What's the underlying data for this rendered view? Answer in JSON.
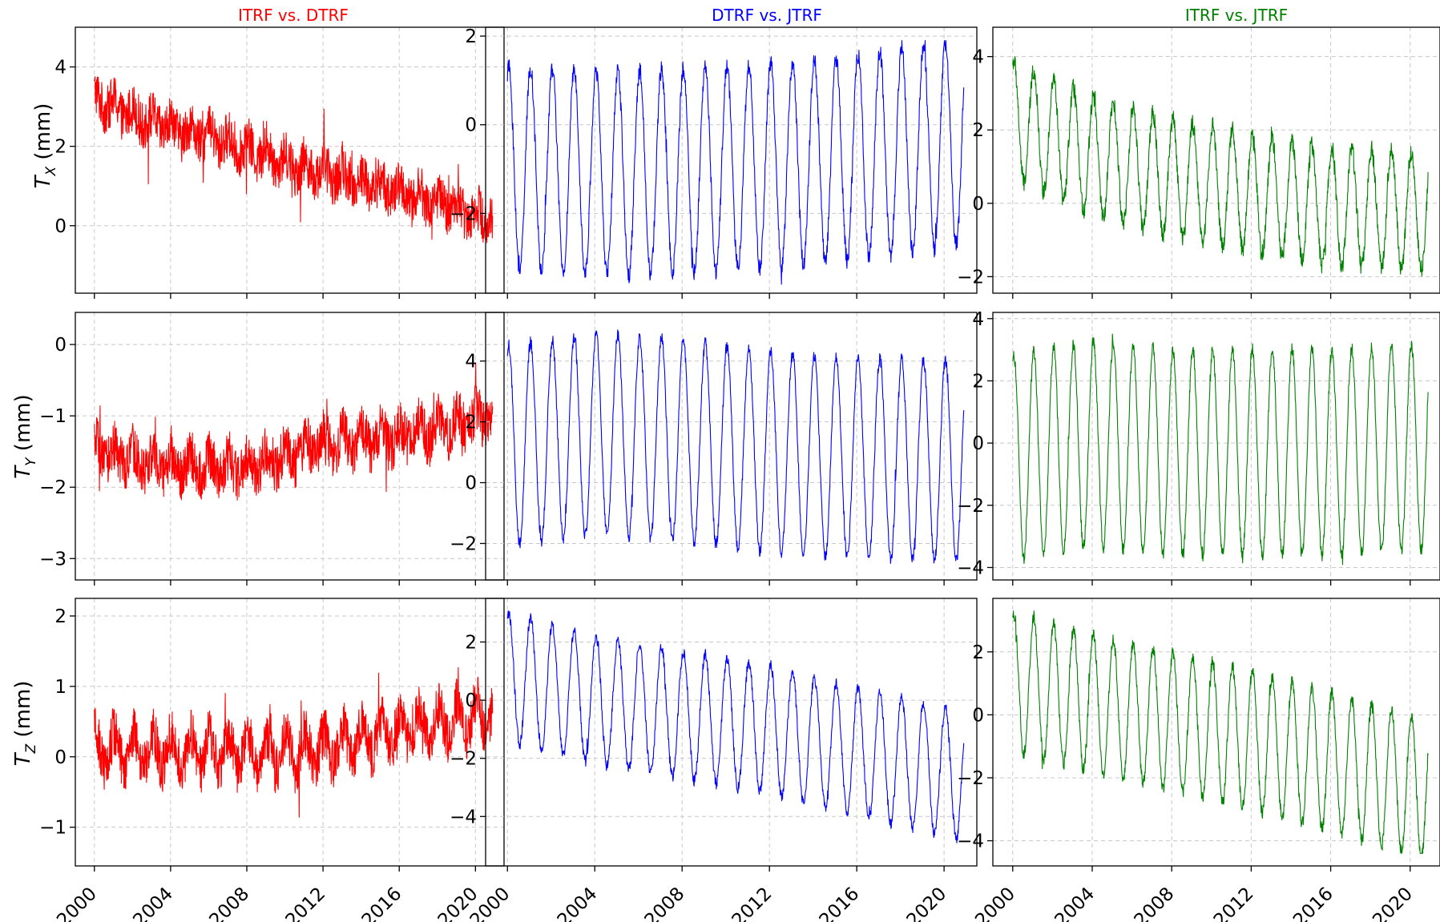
{
  "chart_data": {
    "type": "line",
    "grid": true,
    "layout": "3x3 grid of subplots, shared x axis per column",
    "columns": [
      {
        "title": "ITRF vs. DTRF",
        "color": "#ff0000"
      },
      {
        "title": "DTRF vs. JTRF",
        "color": "#0000ff"
      },
      {
        "title": "ITRF vs. JTRF",
        "color": "#008000"
      }
    ],
    "rows": [
      {
        "ylabel_main": "T",
        "ylabel_sub": "X",
        "ylabel_unit": " (mm)"
      },
      {
        "ylabel_main": "T",
        "ylabel_sub": "Y",
        "ylabel_unit": " (mm)"
      },
      {
        "ylabel_main": "T",
        "ylabel_sub": "Z",
        "ylabel_unit": " (mm)"
      }
    ],
    "xlim": [
      1999.0,
      2021.5
    ],
    "xticks": [
      2000,
      2004,
      2008,
      2012,
      2016,
      2020
    ],
    "xticklabels": [
      "2000",
      "2004",
      "2008",
      "2012",
      "2016",
      "2020"
    ],
    "panels": [
      {
        "row": 0,
        "col": 0,
        "ylim": [
          -1.7,
          5.0
        ],
        "yticks": [
          0,
          2,
          4
        ],
        "yticklabels": [
          "0",
          "2",
          "4"
        ],
        "trend": [
          [
            2000,
            3.2
          ],
          [
            2003,
            2.6
          ],
          [
            2007,
            2.1
          ],
          [
            2010,
            1.6
          ],
          [
            2014,
            1.1
          ],
          [
            2018,
            0.6
          ],
          [
            2020.9,
            0.2
          ]
        ],
        "annual_amplitude": 0.2,
        "noise": 0.6,
        "spike_range": [
          -1.5,
          4.6
        ]
      },
      {
        "row": 0,
        "col": 1,
        "ylim": [
          -3.8,
          2.2
        ],
        "yticks": [
          -2,
          0,
          2
        ],
        "yticklabels": [
          "−2",
          "0",
          "2"
        ],
        "trend": [
          [
            2000,
            -1.0
          ],
          [
            2005,
            -1.1
          ],
          [
            2010,
            -1.0
          ],
          [
            2015,
            -0.8
          ],
          [
            2020.9,
            -0.4
          ]
        ],
        "annual_amplitude": 2.3,
        "noise": 0.2,
        "spike_range": [
          -3.6,
          1.9
        ]
      },
      {
        "row": 0,
        "col": 2,
        "ylim": [
          -2.45,
          4.8
        ],
        "yticks": [
          -2,
          0,
          2,
          4
        ],
        "yticklabels": [
          "−2",
          "0",
          "2",
          "4"
        ],
        "trend": [
          [
            2000,
            2.3
          ],
          [
            2004,
            1.3
          ],
          [
            2008,
            0.7
          ],
          [
            2012,
            0.3
          ],
          [
            2016,
            -0.1
          ],
          [
            2020.9,
            -0.2
          ]
        ],
        "annual_amplitude": 1.6,
        "noise": 0.25,
        "spike_range": [
          -2.1,
          4.5
        ]
      },
      {
        "row": 1,
        "col": 0,
        "ylim": [
          -3.3,
          0.45
        ],
        "yticks": [
          -3,
          -2,
          -1,
          0
        ],
        "yticklabels": [
          "−3",
          "−2",
          "−1",
          "0"
        ],
        "trend": [
          [
            2000,
            -1.5
          ],
          [
            2004,
            -1.7
          ],
          [
            2008,
            -1.7
          ],
          [
            2012,
            -1.4
          ],
          [
            2016,
            -1.3
          ],
          [
            2020.9,
            -1.0
          ]
        ],
        "annual_amplitude": 0.15,
        "noise": 0.35,
        "spike_range": [
          -3.1,
          0.35
        ]
      },
      {
        "row": 1,
        "col": 1,
        "ylim": [
          -3.2,
          5.6
        ],
        "yticks": [
          -2,
          0,
          2,
          4
        ],
        "yticklabels": [
          "−2",
          "0",
          "2",
          "4"
        ],
        "trend": [
          [
            2000,
            1.2
          ],
          [
            2004,
            1.6
          ],
          [
            2008,
            1.4
          ],
          [
            2012,
            1.0
          ],
          [
            2016,
            0.8
          ],
          [
            2020.9,
            0.7
          ]
        ],
        "annual_amplitude": 3.3,
        "noise": 0.2,
        "spike_range": [
          -2.8,
          5.3
        ]
      },
      {
        "row": 1,
        "col": 2,
        "ylim": [
          -4.4,
          4.2
        ],
        "yticks": [
          -4,
          -2,
          0,
          2,
          4
        ],
        "yticklabels": [
          "−4",
          "−2",
          "0",
          "2",
          "4"
        ],
        "trend": [
          [
            2000,
            -0.5
          ],
          [
            2004,
            0.0
          ],
          [
            2008,
            -0.3
          ],
          [
            2012,
            -0.3
          ],
          [
            2016,
            -0.3
          ],
          [
            2020.9,
            -0.1
          ]
        ],
        "annual_amplitude": 3.3,
        "noise": 0.2,
        "spike_range": [
          -4.0,
          3.8
        ]
      },
      {
        "row": 2,
        "col": 0,
        "ylim": [
          -1.55,
          2.25
        ],
        "yticks": [
          -1,
          0,
          1,
          2
        ],
        "yticklabels": [
          "−1",
          "0",
          "1",
          "2"
        ],
        "trend": [
          [
            2000,
            0.1
          ],
          [
            2004,
            0.1
          ],
          [
            2008,
            0.05
          ],
          [
            2012,
            0.1
          ],
          [
            2016,
            0.4
          ],
          [
            2020.9,
            0.6
          ]
        ],
        "annual_amplitude": 0.25,
        "noise": 0.35,
        "spike_range": [
          -1.35,
          2.05
        ]
      },
      {
        "row": 2,
        "col": 1,
        "ylim": [
          -5.7,
          3.5
        ],
        "yticks": [
          -4,
          -2,
          0,
          2
        ],
        "yticklabels": [
          "−4",
          "−2",
          "0",
          "2"
        ],
        "trend": [
          [
            2000,
            0.8
          ],
          [
            2004,
            0.0
          ],
          [
            2008,
            -0.5
          ],
          [
            2012,
            -1.0
          ],
          [
            2016,
            -1.8
          ],
          [
            2020.9,
            -2.6
          ]
        ],
        "annual_amplitude": 2.2,
        "noise": 0.2,
        "spike_range": [
          -5.3,
          3.2
        ]
      },
      {
        "row": 2,
        "col": 2,
        "ylim": [
          -4.8,
          3.7
        ],
        "yticks": [
          -4,
          -2,
          0,
          2
        ],
        "yticklabels": [
          "−4",
          "−2",
          "0",
          "2"
        ],
        "trend": [
          [
            2000,
            1.0
          ],
          [
            2004,
            0.4
          ],
          [
            2008,
            -0.2
          ],
          [
            2012,
            -0.8
          ],
          [
            2016,
            -1.5
          ],
          [
            2020.9,
            -2.4
          ]
        ],
        "annual_amplitude": 2.2,
        "noise": 0.2,
        "spike_range": [
          -4.4,
          3.3
        ]
      }
    ]
  }
}
